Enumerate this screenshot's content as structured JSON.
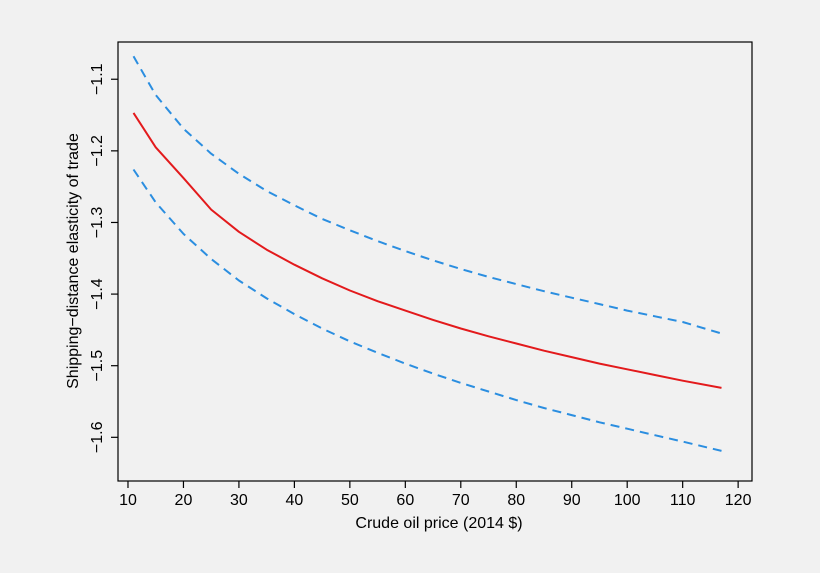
{
  "chart_data": {
    "type": "line",
    "title": "",
    "xlabel": "Crude oil price (2014 $)",
    "ylabel": "Shipping−distance elasticity of trade",
    "xlim": [
      8.2,
      122.5
    ],
    "ylim": [
      -1.661,
      -1.048
    ],
    "xticks": [
      10,
      20,
      30,
      40,
      50,
      60,
      70,
      80,
      90,
      100,
      110,
      120
    ],
    "yticks": [
      -1.1,
      -1.2,
      -1.3,
      -1.4,
      -1.5,
      -1.6
    ],
    "ytick_labels": [
      "−1.1",
      "−1.2",
      "−1.3",
      "−1.4",
      "−1.5",
      "−1.6"
    ],
    "grid": false,
    "colors": {
      "estimate": "#e31a1c",
      "bounds": "#2b8ee0"
    },
    "series": [
      {
        "role": "upper-bound",
        "style": "dashed",
        "x": [
          11,
          15,
          20,
          25,
          30,
          35,
          40,
          45,
          50,
          55,
          60,
          65,
          70,
          75,
          80,
          85,
          90,
          95,
          100,
          105,
          110,
          117
        ],
        "y": [
          -1.068,
          -1.122,
          -1.169,
          -1.204,
          -1.232,
          -1.256,
          -1.276,
          -1.295,
          -1.311,
          -1.326,
          -1.34,
          -1.353,
          -1.365,
          -1.376,
          -1.386,
          -1.396,
          -1.405,
          -1.414,
          -1.423,
          -1.431,
          -1.439,
          -1.455
        ]
      },
      {
        "role": "estimate",
        "style": "solid",
        "x": [
          11,
          15,
          20,
          25,
          30,
          35,
          40,
          45,
          50,
          55,
          60,
          65,
          70,
          75,
          80,
          85,
          90,
          95,
          100,
          105,
          110,
          117
        ],
        "y": [
          -1.147,
          -1.195,
          -1.238,
          -1.282,
          -1.313,
          -1.338,
          -1.359,
          -1.378,
          -1.395,
          -1.41,
          -1.423,
          -1.436,
          -1.448,
          -1.459,
          -1.469,
          -1.479,
          -1.488,
          -1.497,
          -1.505,
          -1.513,
          -1.521,
          -1.531
        ]
      },
      {
        "role": "lower-bound",
        "style": "dashed",
        "x": [
          11,
          15,
          20,
          25,
          30,
          35,
          40,
          45,
          50,
          55,
          60,
          65,
          70,
          75,
          80,
          85,
          90,
          95,
          100,
          105,
          110,
          117
        ],
        "y": [
          -1.226,
          -1.272,
          -1.316,
          -1.351,
          -1.381,
          -1.406,
          -1.428,
          -1.448,
          -1.466,
          -1.482,
          -1.497,
          -1.511,
          -1.524,
          -1.536,
          -1.548,
          -1.559,
          -1.569,
          -1.579,
          -1.588,
          -1.597,
          -1.606,
          -1.619
        ]
      }
    ]
  }
}
